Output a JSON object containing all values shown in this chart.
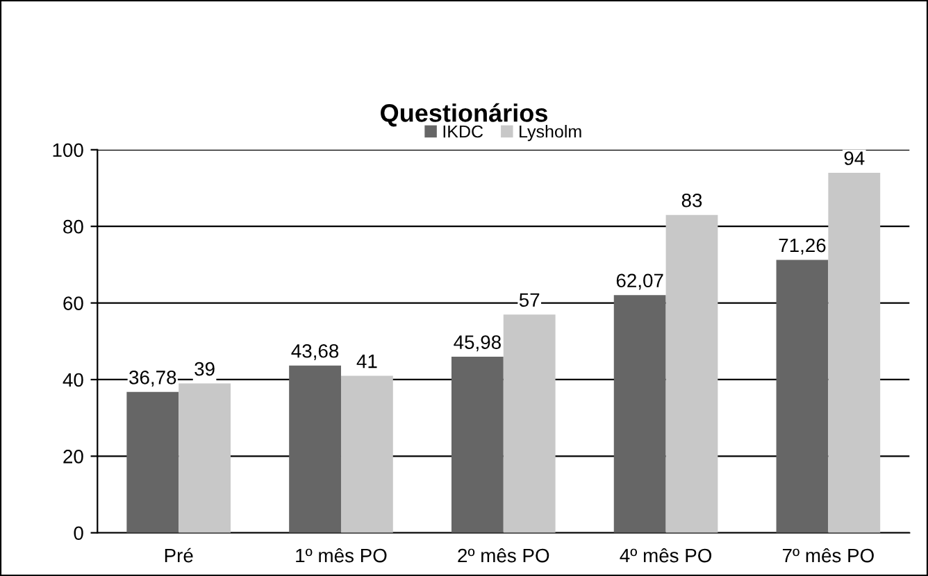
{
  "chart_data": {
    "type": "bar",
    "title": "Questionários",
    "categories": [
      "Pré",
      "1º mês PO",
      "2º mês PO",
      "4º mês PO",
      "7º mês PO"
    ],
    "series": [
      {
        "name": "IKDC",
        "color": "#666666",
        "values": [
          36.78,
          43.68,
          45.98,
          62.07,
          71.26
        ],
        "value_labels": [
          "36,78",
          "43,68",
          "45,98",
          "62,07",
          "71,26"
        ]
      },
      {
        "name": "Lysholm",
        "color": "#c8c8c8",
        "values": [
          39,
          41,
          57,
          83,
          94
        ],
        "value_labels": [
          "39",
          "41",
          "57",
          "83",
          "94"
        ]
      }
    ],
    "ylim": [
      0,
      100
    ],
    "yticks": [
      0,
      20,
      40,
      60,
      80,
      100
    ],
    "grid": "y",
    "legend": "top"
  }
}
